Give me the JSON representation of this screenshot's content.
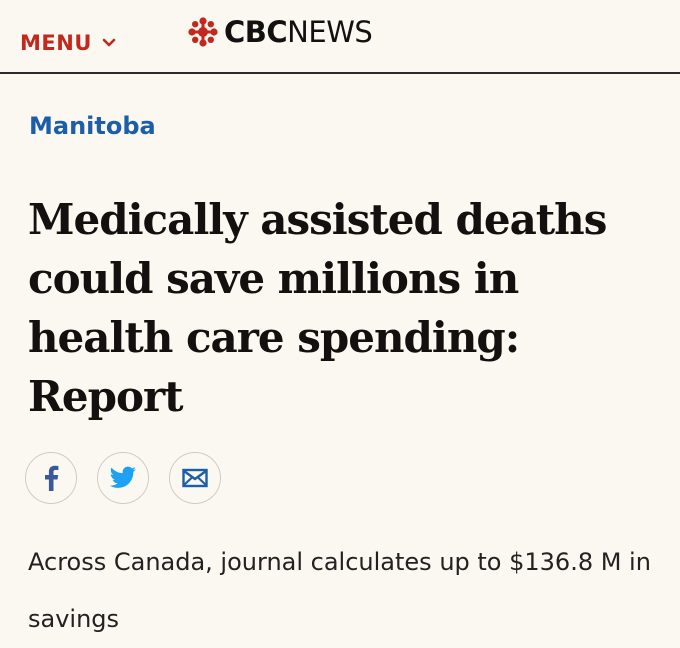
{
  "header": {
    "menu_label": "MENU",
    "logo_bold": "CBC",
    "logo_light": "NEWS",
    "brand_color": "#c2281d"
  },
  "article": {
    "section": "Manitoba",
    "section_color": "#1d5ea8",
    "headline": "Medically assisted deaths could save millions in health care spending: Report",
    "deck": "Across Canada, journal calculates up to $136.8 M in savings"
  },
  "share": {
    "icons": [
      "facebook-icon",
      "twitter-icon",
      "email-icon"
    ],
    "facebook_color": "#3b5998",
    "twitter_color": "#1da1f2",
    "email_color": "#1d5ea8"
  }
}
